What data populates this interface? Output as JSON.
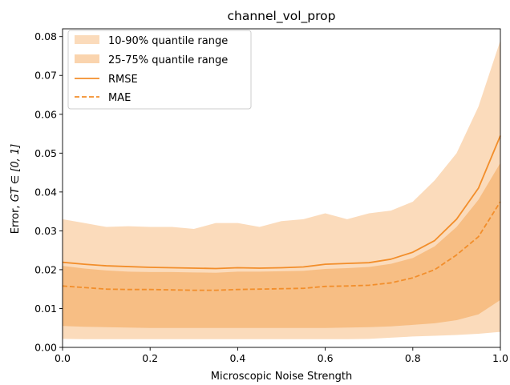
{
  "chart_data": {
    "type": "line",
    "title": "channel_vol_prop",
    "xlabel": "Microscopic Noise Strength",
    "ylabel_prefix": "Error, ",
    "ylabel_math": "GT ∈ [0, 1]",
    "xlim": [
      0.0,
      1.0
    ],
    "ylim": [
      0.0,
      0.082
    ],
    "xticks": [
      0.0,
      0.2,
      0.4,
      0.6,
      0.8,
      1.0
    ],
    "xtick_labels": [
      "0.0",
      "0.2",
      "0.4",
      "0.6",
      "0.8",
      "1.0"
    ],
    "yticks": [
      0.0,
      0.01,
      0.02,
      0.03,
      0.04,
      0.05,
      0.06,
      0.07,
      0.08
    ],
    "ytick_labels": [
      "0.00",
      "0.01",
      "0.02",
      "0.03",
      "0.04",
      "0.05",
      "0.06",
      "0.07",
      "0.08"
    ],
    "grid": false,
    "legend_position": "top-left",
    "color": "#f28e2b",
    "x": [
      0.0,
      0.05,
      0.1,
      0.15,
      0.2,
      0.25,
      0.3,
      0.35,
      0.4,
      0.45,
      0.5,
      0.55,
      0.6,
      0.65,
      0.7,
      0.75,
      0.8,
      0.85,
      0.9,
      0.95,
      1.0
    ],
    "bands": [
      {
        "name": "10-90% quantile range",
        "opacity": 0.32,
        "lower": [
          0.0022,
          0.0021,
          0.0021,
          0.0021,
          0.0021,
          0.0021,
          0.0021,
          0.0021,
          0.0021,
          0.0021,
          0.0021,
          0.0021,
          0.0021,
          0.0021,
          0.0022,
          0.0025,
          0.0028,
          0.003,
          0.0032,
          0.0035,
          0.004
        ],
        "upper": [
          0.033,
          0.032,
          0.031,
          0.0312,
          0.031,
          0.031,
          0.0305,
          0.032,
          0.032,
          0.031,
          0.0325,
          0.033,
          0.0345,
          0.033,
          0.0345,
          0.0352,
          0.0375,
          0.043,
          0.05,
          0.062,
          0.079
        ]
      },
      {
        "name": "25-75% quantile range",
        "opacity": 0.38,
        "lower": [
          0.0055,
          0.0053,
          0.0052,
          0.0051,
          0.005,
          0.005,
          0.005,
          0.005,
          0.005,
          0.005,
          0.005,
          0.005,
          0.005,
          0.0051,
          0.0052,
          0.0054,
          0.0058,
          0.0062,
          0.007,
          0.0085,
          0.0122
        ],
        "upper": [
          0.021,
          0.0203,
          0.0198,
          0.0195,
          0.0194,
          0.0194,
          0.0193,
          0.0192,
          0.0195,
          0.0195,
          0.0196,
          0.0197,
          0.0202,
          0.0204,
          0.0207,
          0.0215,
          0.023,
          0.026,
          0.031,
          0.038,
          0.0475
        ]
      }
    ],
    "series": [
      {
        "name": "RMSE",
        "style": "solid",
        "values": [
          0.0219,
          0.0214,
          0.021,
          0.0208,
          0.0206,
          0.0205,
          0.0204,
          0.0203,
          0.0205,
          0.0204,
          0.0205,
          0.0207,
          0.0214,
          0.0216,
          0.0218,
          0.0227,
          0.0245,
          0.0275,
          0.033,
          0.041,
          0.0545
        ]
      },
      {
        "name": "MAE",
        "style": "dashed",
        "values": [
          0.0158,
          0.0154,
          0.015,
          0.0149,
          0.0149,
          0.0148,
          0.0147,
          0.0147,
          0.0149,
          0.015,
          0.0151,
          0.0152,
          0.0157,
          0.0158,
          0.016,
          0.0166,
          0.0179,
          0.02,
          0.0238,
          0.0285,
          0.0375
        ]
      }
    ]
  }
}
